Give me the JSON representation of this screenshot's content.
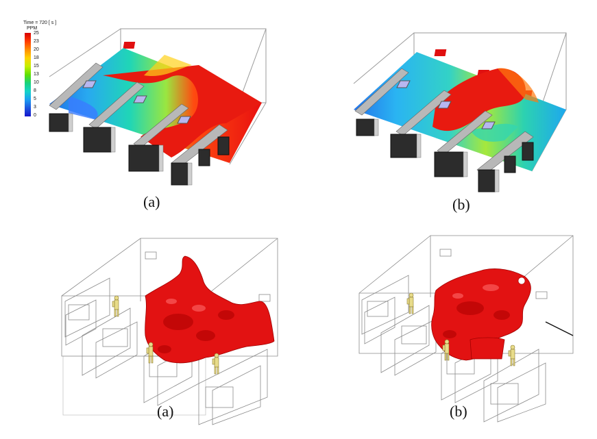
{
  "legend": {
    "title": "Time = 720 [ s ]",
    "unit": "PPM",
    "ticks": [
      "25",
      "23",
      "20",
      "18",
      "15",
      "13",
      "10",
      "8",
      "5",
      "3",
      "0"
    ],
    "colors": [
      "#e00000",
      "#ff4a00",
      "#ff9a00",
      "#ffd800",
      "#c8f000",
      "#6ee000",
      "#19d36a",
      "#14d6c4",
      "#1a9cf0",
      "#1d55e0",
      "#1a1ad0"
    ]
  },
  "captions": {
    "top_left": "(a)",
    "top_right": "(b)",
    "bottom_left": "(a)",
    "bottom_right": "(b)"
  },
  "colors": {
    "contaminant": "#e01010",
    "outline": "#8a8a8a",
    "furniture_dark": "#2a2a2a",
    "furniture_grey": "#b5b5b5",
    "occupant": "#e8dc8a"
  }
}
